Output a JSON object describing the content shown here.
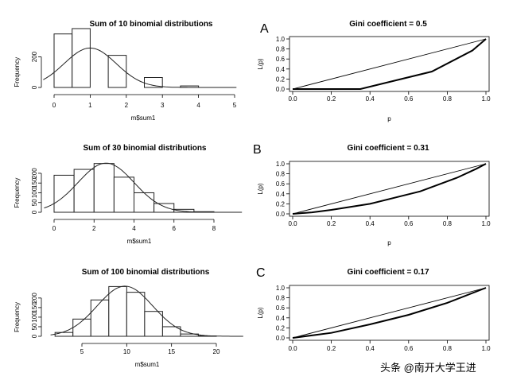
{
  "chart_data": [
    {
      "type": "bar",
      "title": "Sum of 10 binomial distributions",
      "xlabel": "m$sum1",
      "ylabel": "Frequency",
      "bins": [
        [
          0,
          0.5
        ],
        [
          0.5,
          1
        ],
        [
          1,
          1.5
        ],
        [
          1.5,
          2
        ],
        [
          2,
          2.5
        ],
        [
          2.5,
          3
        ],
        [
          3,
          3.5
        ],
        [
          3.5,
          4
        ],
        [
          4,
          4.5
        ],
        [
          4.5,
          5
        ]
      ],
      "values": [
        350,
        385,
        0,
        210,
        0,
        65,
        0,
        10,
        0,
        0
      ],
      "xlim": [
        -0.3,
        5.05
      ],
      "ylim": [
        0,
        390
      ],
      "xticks": [
        0,
        1,
        2,
        3,
        4,
        5
      ],
      "yticks": [
        0,
        200
      ],
      "xtick_labels": [
        "0",
        "1",
        "2",
        "3",
        "4",
        "5"
      ],
      "ytick_labels": [
        "0",
        "200"
      ],
      "density_curve": {
        "mean": 1.0,
        "sd": 0.72,
        "peak": 258
      }
    },
    {
      "type": "line",
      "panel_letter": "A",
      "title": "Gini coefficient = 0.5",
      "xlabel": "p",
      "ylabel": "L(p)",
      "xlim": [
        0,
        1
      ],
      "ylim": [
        0,
        1
      ],
      "xticks": [
        0,
        0.2,
        0.4,
        0.6,
        0.8,
        1
      ],
      "yticks": [
        0,
        0.2,
        0.4,
        0.6,
        0.8,
        1
      ],
      "xtick_labels": [
        "0.0",
        "0.2",
        "0.4",
        "0.6",
        "0.8",
        "1.0"
      ],
      "ytick_labels": [
        "0.0",
        "0.2",
        "0.4",
        "0.6",
        "0.8",
        "1.0"
      ],
      "series": [
        {
          "x": [
            0,
            1
          ],
          "y": [
            0,
            1
          ]
        },
        {
          "x": [
            0,
            0.35,
            0.72,
            0.93,
            1.0
          ],
          "y": [
            0,
            0,
            0.35,
            0.77,
            1.0
          ]
        }
      ]
    },
    {
      "type": "bar",
      "title": "Sum of 30 binomial distributions",
      "xlabel": "m$sum1",
      "ylabel": "Frequency",
      "bins": [
        [
          0,
          1
        ],
        [
          1,
          2
        ],
        [
          2,
          3
        ],
        [
          3,
          4
        ],
        [
          4,
          5
        ],
        [
          5,
          6
        ],
        [
          6,
          7
        ],
        [
          7,
          8
        ]
      ],
      "values": [
        190,
        220,
        250,
        180,
        100,
        45,
        15,
        3
      ],
      "xlim": [
        -0.5,
        9.4
      ],
      "ylim": [
        0,
        265
      ],
      "xticks": [
        0,
        2,
        4,
        6,
        8
      ],
      "yticks": [
        0,
        50,
        100,
        150,
        200
      ],
      "xtick_labels": [
        "0",
        "2",
        "4",
        "6",
        "8"
      ],
      "ytick_labels": [
        "0",
        "50",
        "100",
        "150",
        "200"
      ],
      "density_curve": {
        "mean": 2.6,
        "sd": 1.4,
        "peak": 252
      }
    },
    {
      "type": "line",
      "panel_letter": "B",
      "title": "Gini coefficient = 0.31",
      "xlabel": "p",
      "ylabel": "L(p)",
      "xlim": [
        0,
        1
      ],
      "ylim": [
        0,
        1
      ],
      "xticks": [
        0,
        0.2,
        0.4,
        0.6,
        0.8,
        1
      ],
      "yticks": [
        0,
        0.2,
        0.4,
        0.6,
        0.8,
        1
      ],
      "xtick_labels": [
        "0.0",
        "0.2",
        "0.4",
        "0.6",
        "0.8",
        "1.0"
      ],
      "ytick_labels": [
        "0.0",
        "0.2",
        "0.4",
        "0.6",
        "0.8",
        "1.0"
      ],
      "series": [
        {
          "x": [
            0,
            1
          ],
          "y": [
            0,
            1
          ]
        },
        {
          "x": [
            0,
            0.1,
            0.2,
            0.4,
            0.66,
            0.85,
            0.95,
            1.0
          ],
          "y": [
            0,
            0.03,
            0.08,
            0.2,
            0.45,
            0.72,
            0.9,
            1.0
          ]
        }
      ]
    },
    {
      "type": "bar",
      "title": "Sum of 100 binomial distributions",
      "xlabel": "m$sum1",
      "ylabel": "Frequency",
      "bins": [
        [
          2,
          4
        ],
        [
          4,
          6
        ],
        [
          6,
          8
        ],
        [
          8,
          10
        ],
        [
          10,
          12
        ],
        [
          12,
          14
        ],
        [
          14,
          16
        ],
        [
          16,
          18
        ],
        [
          18,
          20
        ]
      ],
      "values": [
        20,
        90,
        190,
        260,
        230,
        130,
        50,
        12,
        2
      ],
      "xlim": [
        1.5,
        23
      ],
      "ylim": [
        0,
        270
      ],
      "xticks": [
        5,
        10,
        15,
        20
      ],
      "yticks": [
        0,
        50,
        100,
        150,
        200
      ],
      "xtick_labels": [
        "5",
        "10",
        "15",
        "20"
      ],
      "ytick_labels": [
        "0",
        "50",
        "100",
        "150",
        "200"
      ],
      "density_curve": {
        "mean": 9.8,
        "sd": 3.1,
        "peak": 262
      }
    },
    {
      "type": "line",
      "panel_letter": "C",
      "title": "Gini coefficient = 0.17",
      "xlabel": "",
      "ylabel": "L(p)",
      "xlim": [
        0,
        1
      ],
      "ylim": [
        0,
        1
      ],
      "xticks": [
        0,
        0.2,
        0.4,
        0.6,
        0.8,
        1
      ],
      "yticks": [
        0,
        0.2,
        0.4,
        0.6,
        0.8,
        1
      ],
      "xtick_labels": [
        "0.0",
        "0.2",
        "0.4",
        "0.6",
        "0.8",
        "1.0"
      ],
      "ytick_labels": [
        "0.0",
        "0.2",
        "0.4",
        "0.6",
        "0.8",
        "1.0"
      ],
      "series": [
        {
          "x": [
            0,
            1
          ],
          "y": [
            0,
            1
          ]
        },
        {
          "x": [
            0,
            0.2,
            0.4,
            0.6,
            0.8,
            1.0
          ],
          "y": [
            0,
            0.1,
            0.27,
            0.46,
            0.7,
            1.0
          ]
        }
      ]
    }
  ],
  "watermark": "头条 @南开大学王进"
}
